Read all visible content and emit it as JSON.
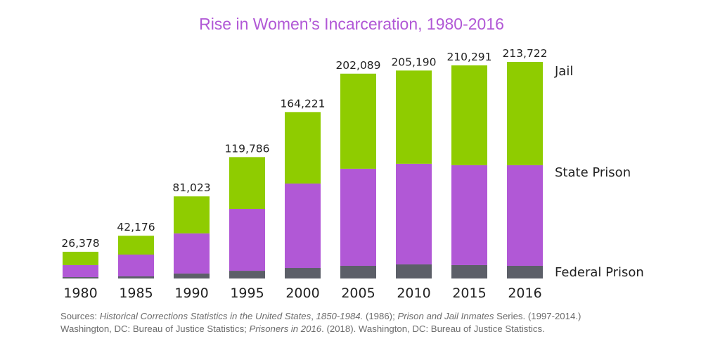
{
  "chart_data": {
    "type": "bar",
    "stacked": true,
    "title": "Rise in Women’s Incarceration, 1980-2016",
    "xlabel": "",
    "ylabel": "",
    "ylim": [
      0,
      213722
    ],
    "grid": false,
    "legend_placement": "right",
    "categories": [
      "1980",
      "1985",
      "1990",
      "1995",
      "2000",
      "2005",
      "2010",
      "2015",
      "2016"
    ],
    "totals": [
      "26,378",
      "42,176",
      "81,023",
      "119,786",
      "164,221",
      "202,089",
      "205,190",
      "210,291",
      "213,722"
    ],
    "total_values": [
      26378,
      42176,
      81023,
      119786,
      164221,
      202089,
      205190,
      210291,
      213722
    ],
    "series": [
      {
        "name": "Federal Prison",
        "color": "#5c5f68",
        "values": [
          1400,
          2100,
          4900,
          7600,
          10400,
          12500,
          13900,
          13200,
          12500
        ]
      },
      {
        "name": "State Prison",
        "color": "#b158d6",
        "values": [
          11800,
          21500,
          39600,
          61100,
          83300,
          95800,
          99300,
          98600,
          99300
        ]
      },
      {
        "name": "Jail",
        "color": "#8fcc00",
        "values": [
          13178,
          18576,
          36523,
          51086,
          70521,
          93789,
          91990,
          98491,
          101922
        ]
      }
    ]
  },
  "source": {
    "label": "Sources: ",
    "ref1_title": "Historical Corrections Statistics in the United States",
    "ref1_rest": ", ",
    "ref1_years": "1850-1984.",
    "ref1_pub": " (1986); ",
    "ref2_title": "Prison and Jail Inmates",
    "ref2_rest": " Series. (1997-2014.)",
    "line2_start": "Washington, DC: Bureau of Justice Statistics; ",
    "ref3_title": "Prisoners in 2016",
    "ref3_rest": ". (2018). Washington, DC: Bureau of Justice Statistics."
  }
}
